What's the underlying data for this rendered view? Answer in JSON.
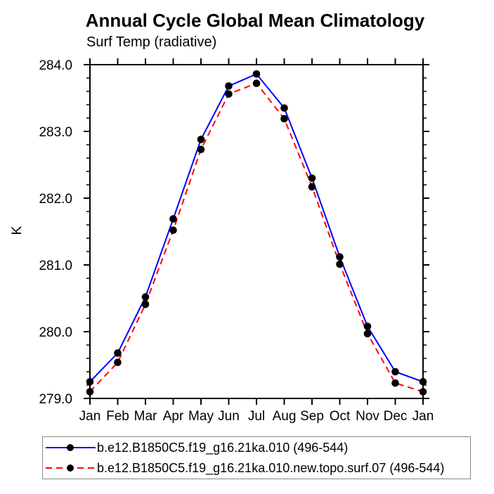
{
  "chart_data": {
    "type": "line",
    "title": "Annual Cycle Global Mean Climatology",
    "subtitle": "Surf Temp (radiative)",
    "xlabel": "",
    "ylabel": "K",
    "categories": [
      "Jan",
      "Feb",
      "Mar",
      "Apr",
      "May",
      "Jun",
      "Jul",
      "Aug",
      "Sep",
      "Oct",
      "Nov",
      "Dec",
      "Jan"
    ],
    "ylim": [
      279.0,
      284.0
    ],
    "y_major_tick_step": 1.0,
    "y_minor_tick_step": 0.2,
    "y_tick_labels": [
      "284.0",
      "283.0",
      "282.0",
      "281.0",
      "280.0",
      "279.0"
    ],
    "grid": false,
    "legend_position": "bottom",
    "axis_color": "#000000",
    "marker_color": "#000000",
    "series": [
      {
        "name": "b.e12.B1850C5.f19_g16.21ka.010 (496-544)",
        "color": "#0000ff",
        "style": "solid",
        "marker": "filled-circle",
        "values": [
          279.25,
          279.68,
          280.52,
          281.69,
          282.88,
          283.68,
          283.86,
          283.35,
          282.3,
          281.12,
          280.08,
          279.4,
          279.25
        ]
      },
      {
        "name": "b.e12.B1850C5.f19_g16.21ka.010.new.topo.surf.07 (496-544)",
        "color": "#ff0000",
        "style": "dashed",
        "marker": "filled-circle",
        "values": [
          279.1,
          279.54,
          280.41,
          281.52,
          282.73,
          283.56,
          283.72,
          283.19,
          282.17,
          281.01,
          279.97,
          279.23,
          279.1
        ]
      }
    ]
  }
}
